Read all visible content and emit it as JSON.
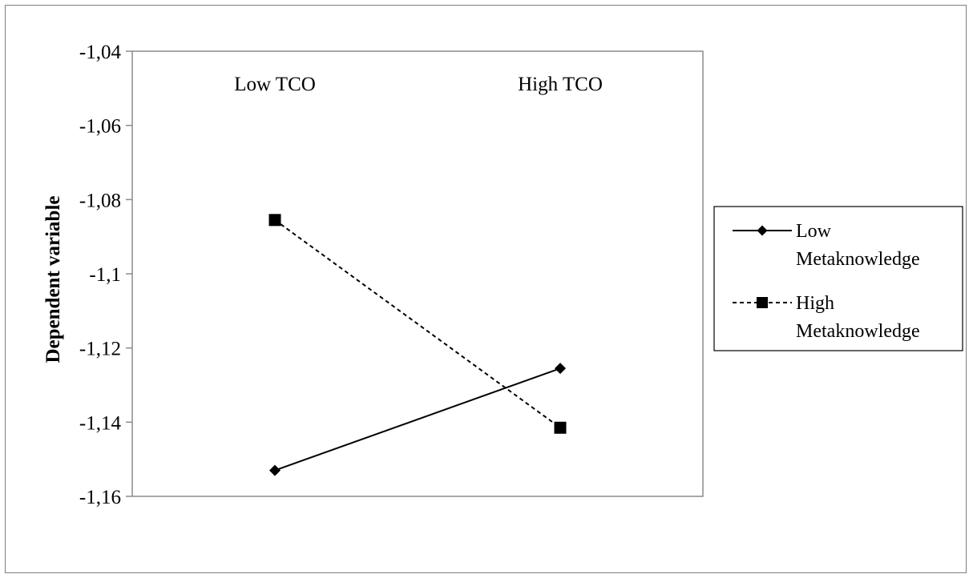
{
  "chart_data": {
    "type": "line",
    "title": "",
    "xlabel": "",
    "ylabel": "Dependent variable",
    "categories": [
      "Low TCO",
      "High TCO"
    ],
    "category_labels_position": "top",
    "ylim": [
      -1.16,
      -1.04
    ],
    "yticks": [
      -1.04,
      -1.06,
      -1.08,
      -1.1,
      -1.12,
      -1.14,
      -1.16
    ],
    "ytick_labels": [
      "-1,04",
      "-1,06",
      "-1,08",
      "-1,1",
      "-1,12",
      "-1,14",
      "-1,16"
    ],
    "grid": false,
    "legend_position": "right",
    "series": [
      {
        "name_lines": [
          "Low",
          "Metaknowledge"
        ],
        "values": [
          -1.153,
          -1.1255
        ],
        "marker": "diamond",
        "line_style": "solid",
        "color": "#000000"
      },
      {
        "name_lines": [
          "High",
          "Metaknowledge"
        ],
        "values": [
          -1.0855,
          -1.1415
        ],
        "marker": "square",
        "line_style": "dashed",
        "color": "#000000"
      }
    ]
  }
}
